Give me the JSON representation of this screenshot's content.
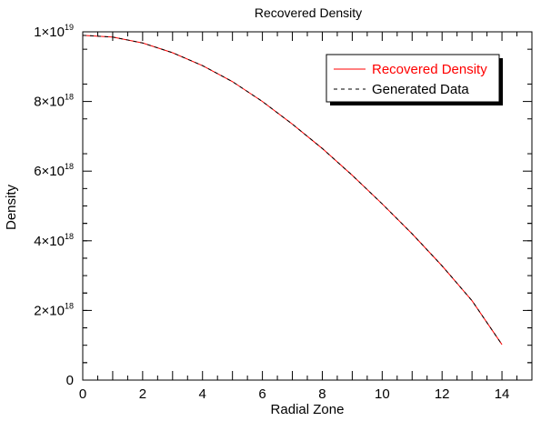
{
  "chart_data": {
    "type": "line",
    "title": "Recovered Density",
    "xlabel": "Radial Zone",
    "ylabel": "Density",
    "xlim": [
      0,
      15
    ],
    "ylim": [
      0,
      1e+19
    ],
    "x_ticks": [
      {
        "value": 0,
        "label": "0"
      },
      {
        "value": 2,
        "label": "2"
      },
      {
        "value": 4,
        "label": "4"
      },
      {
        "value": 6,
        "label": "6"
      },
      {
        "value": 8,
        "label": "8"
      },
      {
        "value": 10,
        "label": "10"
      },
      {
        "value": 12,
        "label": "12"
      },
      {
        "value": 14,
        "label": "14"
      }
    ],
    "y_ticks": [
      {
        "value": 0,
        "mantissa": "0",
        "exponent": ""
      },
      {
        "value": 2e+18,
        "mantissa": "2×10",
        "exponent": "18"
      },
      {
        "value": 4e+18,
        "mantissa": "4×10",
        "exponent": "18"
      },
      {
        "value": 6e+18,
        "mantissa": "6×10",
        "exponent": "18"
      },
      {
        "value": 8e+18,
        "mantissa": "8×10",
        "exponent": "18"
      },
      {
        "value": 1e+19,
        "mantissa": "1×10",
        "exponent": "19"
      }
    ],
    "x": [
      0,
      1,
      2,
      3,
      4,
      5,
      6,
      7,
      8,
      9,
      10,
      11,
      12,
      13,
      14
    ],
    "series": [
      {
        "name": "Recovered Density",
        "color": "#ff0000",
        "style": "solid",
        "values": [
          9.9e+18,
          9.85e+18,
          9.68e+18,
          9.4e+18,
          9.03e+18,
          8.57e+18,
          8e+18,
          7.35e+18,
          6.65e+18,
          5.88e+18,
          5.06e+18,
          4.2e+18,
          3.28e+18,
          2.28e+18,
          1.02e+18
        ]
      },
      {
        "name": "Generated Data",
        "color": "#000000",
        "style": "dashed",
        "values": [
          9.9e+18,
          9.85e+18,
          9.68e+18,
          9.4e+18,
          9.03e+18,
          8.57e+18,
          8e+18,
          7.35e+18,
          6.65e+18,
          5.88e+18,
          5.06e+18,
          4.2e+18,
          3.28e+18,
          2.28e+18,
          1.02e+18
        ]
      }
    ],
    "legend_position": "top-right",
    "grid": false
  }
}
